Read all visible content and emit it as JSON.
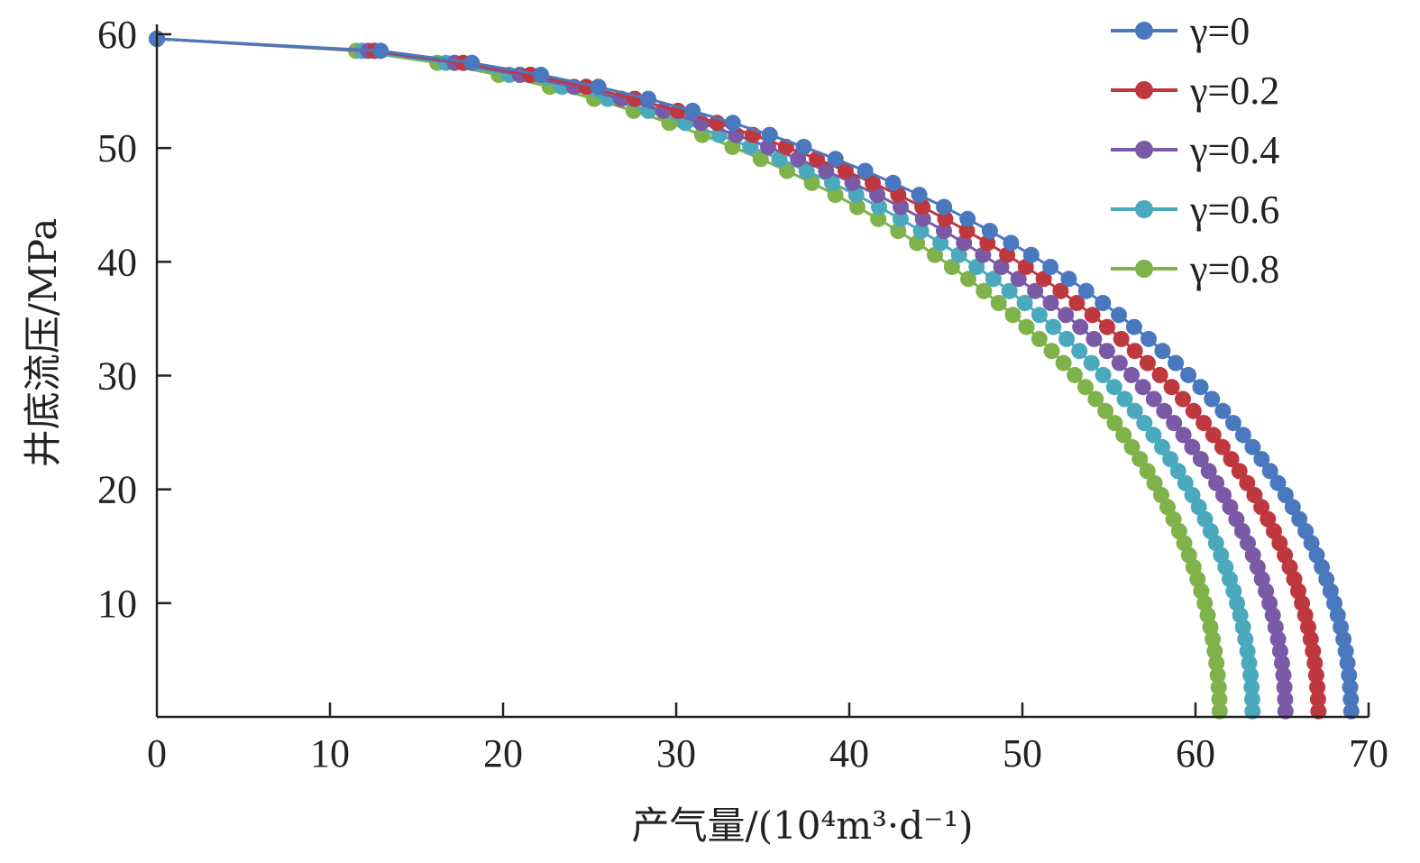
{
  "chart_data": {
    "type": "line",
    "title": "",
    "xlabel": "产气量/(10⁴m³·d⁻¹)",
    "ylabel": "井底流压/MPa",
    "xlim": [
      0,
      70
    ],
    "ylim": [
      0,
      60
    ],
    "xticks": [
      "0",
      "10",
      "20",
      "30",
      "40",
      "50",
      "60",
      "70"
    ],
    "yticks": [
      "10",
      "20",
      "30",
      "40",
      "50",
      "60"
    ],
    "legend_position": "top-right",
    "grid": false,
    "series": [
      {
        "name": "γ=0",
        "color": "#4a78be",
        "q_max": 69.0
      },
      {
        "name": "γ=0.2",
        "color": "#c0383f",
        "q_max": 67.1
      },
      {
        "name": "γ=0.4",
        "color": "#7a5aa6",
        "q_max": 65.2
      },
      {
        "name": "γ=0.6",
        "color": "#4aa9bd",
        "q_max": 63.3
      },
      {
        "name": "γ=0.8",
        "color": "#7fb24a",
        "q_max": 61.4
      }
    ],
    "p_max": 59.6,
    "p_min": 0.5
  }
}
